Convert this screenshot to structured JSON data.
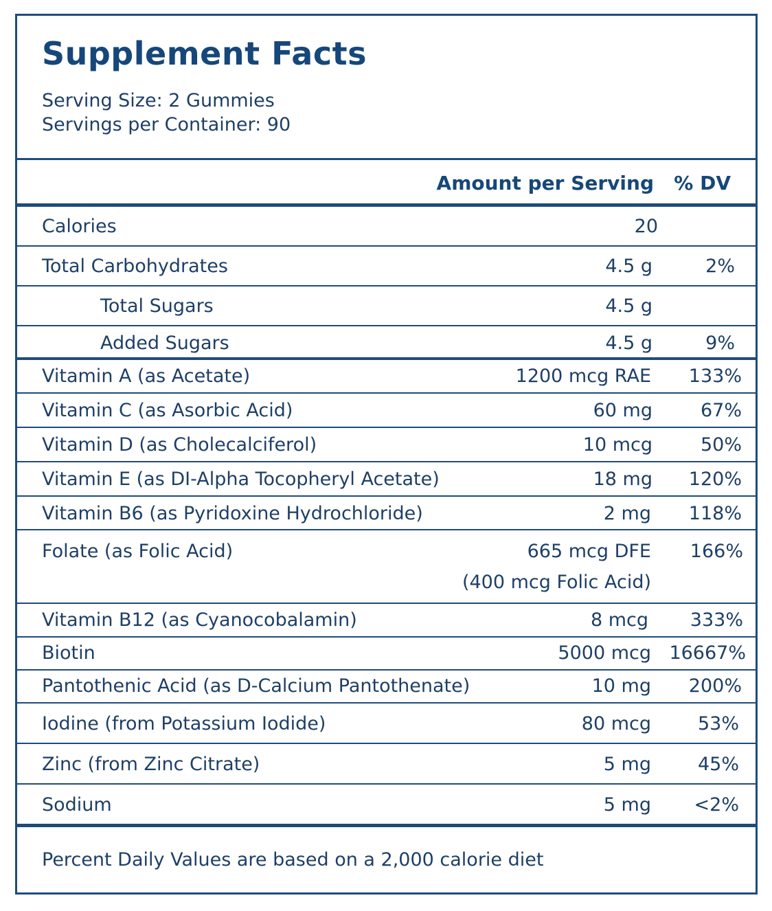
{
  "title": "Supplement Facts",
  "serving_size": "Serving Size: 2 Gummies",
  "servings_per_container": "Servings per Container: 90",
  "header": {
    "amount": "Amount per Serving",
    "dv": "% DV"
  },
  "rows": [
    {
      "name": "Calories",
      "amount": "20",
      "dv": ""
    },
    {
      "name": "Total Carbohydrates",
      "amount": "4.5 g",
      "dv": "2%"
    },
    {
      "name": "Total Sugars",
      "amount": "4.5 g",
      "dv": ""
    },
    {
      "name": "Added Sugars",
      "amount": "4.5 g",
      "dv": "9%"
    },
    {
      "name": "Vitamin A (as Acetate)",
      "amount": "1200 mcg RAE",
      "dv": "133%"
    },
    {
      "name": "Vitamin C (as Asorbic Acid)",
      "amount": "60 mg",
      "dv": "67%"
    },
    {
      "name": "Vitamin D (as Cholecalciferol)",
      "amount": "10 mcg",
      "dv": "50%"
    },
    {
      "name": "Vitamin E (as DI-Alpha Tocopheryl Acetate)",
      "amount": "18 mg",
      "dv": "120%"
    },
    {
      "name": "Vitamin B6 (as Pyridoxine Hydrochloride)",
      "amount": "2 mg",
      "dv": "118%"
    },
    {
      "name": "Folate (as Folic Acid)",
      "amount": "665 mcg DFE",
      "amount2": "(400 mcg Folic Acid)",
      "dv": "166%"
    },
    {
      "name": "Vitamin B12 (as Cyanocobalamin)",
      "amount": "8 mcg",
      "dv": "333%"
    },
    {
      "name": "Biotin",
      "amount": "5000 mcg",
      "dv": "16667%"
    },
    {
      "name": "Pantothenic Acid (as D-Calcium Pantothenate)",
      "amount": "10 mg",
      "dv": "200%"
    },
    {
      "name": "Iodine (from Potassium Iodide)",
      "amount": "80 mcg",
      "dv": "53%"
    },
    {
      "name": "Zinc (from Zinc Citrate)",
      "amount": "5 mg",
      "dv": "45%"
    },
    {
      "name": "Sodium",
      "amount": "5 mg",
      "dv": "<2%"
    }
  ],
  "footnote": "Percent Daily Values are based on a 2,000 calorie diet",
  "colors": {
    "text": "#1e3f66",
    "title": "#16477a",
    "rule": "#1f4b7c"
  }
}
